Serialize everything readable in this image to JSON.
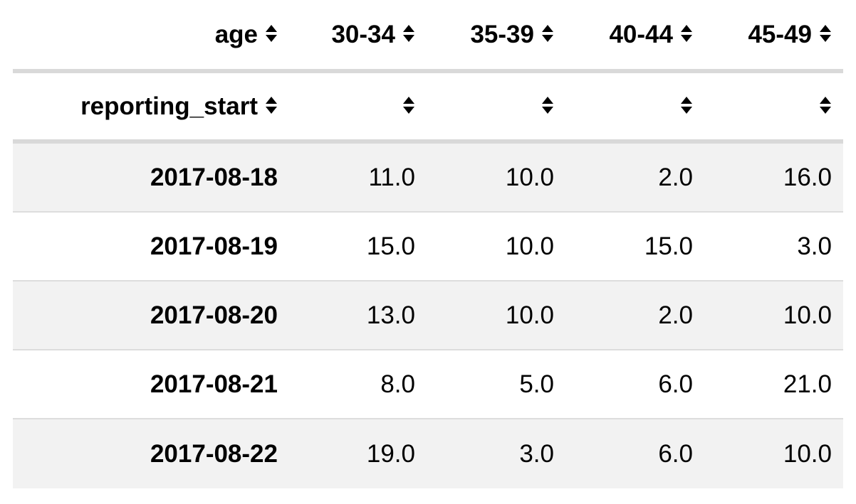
{
  "table": {
    "index_name": "age",
    "columns": [
      "30-34",
      "35-39",
      "40-44",
      "45-49"
    ],
    "row_index_name": "reporting_start",
    "rows": [
      {
        "index": "2017-08-18",
        "values": [
          "11.0",
          "10.0",
          "2.0",
          "16.0"
        ]
      },
      {
        "index": "2017-08-19",
        "values": [
          "15.0",
          "10.0",
          "15.0",
          "3.0"
        ]
      },
      {
        "index": "2017-08-20",
        "values": [
          "13.0",
          "10.0",
          "2.0",
          "10.0"
        ]
      },
      {
        "index": "2017-08-21",
        "values": [
          "8.0",
          "5.0",
          "6.0",
          "21.0"
        ]
      },
      {
        "index": "2017-08-22",
        "values": [
          "19.0",
          "3.0",
          "6.0",
          "10.0"
        ]
      }
    ]
  },
  "icons": {
    "sort": "sort-up-down-icon"
  },
  "colors": {
    "stripe": "#f2f2f2",
    "header_border": "#d9d9d9",
    "row_border": "#dddddd"
  }
}
